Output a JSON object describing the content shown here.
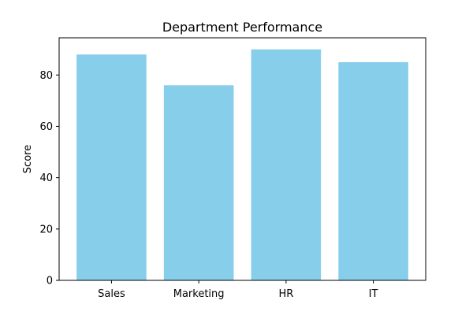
{
  "chart_data": {
    "type": "bar",
    "title": "Department Performance",
    "xlabel": "",
    "ylabel": "Score",
    "categories": [
      "Sales",
      "Marketing",
      "HR",
      "IT"
    ],
    "values": [
      88,
      76,
      90,
      85
    ],
    "ylim": [
      0,
      94.5
    ],
    "yticks": [
      0,
      20,
      40,
      60,
      80
    ],
    "bar_color": "#87CEEB",
    "grid": false,
    "legend": "none"
  }
}
